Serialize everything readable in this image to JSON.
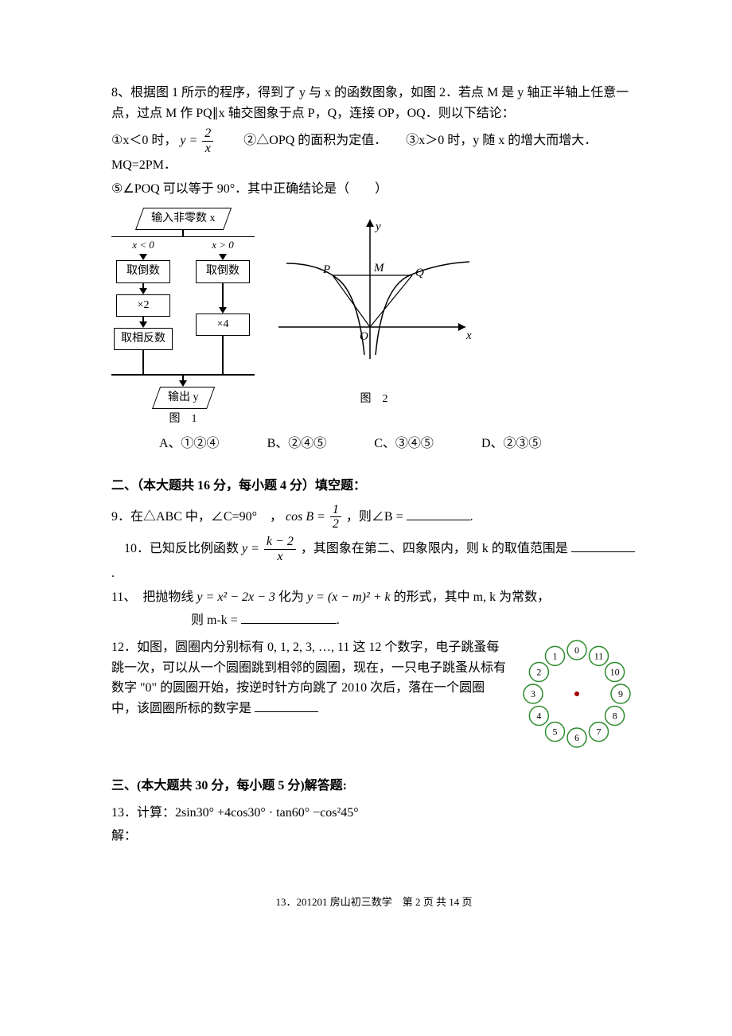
{
  "q8": {
    "stem1": "8、根据图 1 所示的程序，得到了 y 与 x 的函数图象，如图 2．若点 M 是 y 轴正半轴上任意一点，过点 M 作 PQ∥x 轴交图象于点 P，Q，连接 OP，OQ．则以下结论：",
    "line1_pre": "①x＜0 时，",
    "line1_eq_num": "2",
    "line1_eq_den": "x",
    "line1_mid": "　　②△OPQ 的面积为定值．　　③x＞0 时，y 随 x 的增大而增大．MQ=2PM．",
    "line2": "⑤∠POQ 可以等于 90°．其中正确结论是（　　）",
    "flow": {
      "input": "输入非零数 x",
      "cond_left": "x < 0",
      "cond_right": "x > 0",
      "step_reciprocal": "取倒数",
      "mult2": "×2",
      "mult4": "×4",
      "negate": "取相反数",
      "output": "输出 y",
      "caption": "图　1"
    },
    "graph": {
      "y_label": "y",
      "x_label": "x",
      "P": "P",
      "M": "M",
      "Q": "Q",
      "O": "O",
      "caption": "图　2"
    },
    "options": {
      "A": "A、①②④",
      "B": "B、②④⑤",
      "C": "C、③④⑤",
      "D": "D、②③⑤"
    }
  },
  "section2": "二、（本大题共 16 分，每小题 4 分）填空题：",
  "q9": {
    "pre": "9．在△ABC 中，∠C=90°　，",
    "cos_num": "1",
    "cos_den": "2",
    "post": "，则∠B ="
  },
  "q10": {
    "pre": "　10．已知反比例函数",
    "num": "k − 2",
    "den": "x",
    "post": "，其图象在第二、四象限内，则 k 的取值范围是"
  },
  "q11": {
    "line1": "11、　把抛物线",
    "eq1": "y = x² − 2x − 3",
    "mid": "化为",
    "eq2": "y = (x − m)² + k",
    "post": "的形式，其中 m, k 为常数，",
    "line2_pre": "则 m-k ="
  },
  "q12": {
    "text": "12．如图，圆圈内分别标有 0, 1, 2, 3, …, 11 这 12 个数字，电子跳蚤每跳一次，可以从一个圆圈跳到相邻的圆圈，现在，一只电子跳蚤从标有数字 \"0\" 的圆圈开始，按逆时针方向跳了 2010 次后，落在一个圆圈中，该圆圈所标的数字是",
    "dot_color": "#a00000",
    "circle_stroke": "#2e8b2e",
    "numbers": [
      "0",
      "1",
      "2",
      "3",
      "4",
      "5",
      "6",
      "7",
      "8",
      "9",
      "10",
      "11"
    ]
  },
  "section3": "三、(本大题共 30 分，每小题 5 分)解答题:",
  "q13": {
    "line": "13．计算：2sin30° +4cos30° · tan60° −cos²45°",
    "sol": "解："
  },
  "footer": "13．201201 房山初三数学　第 2 页 共 14 页"
}
